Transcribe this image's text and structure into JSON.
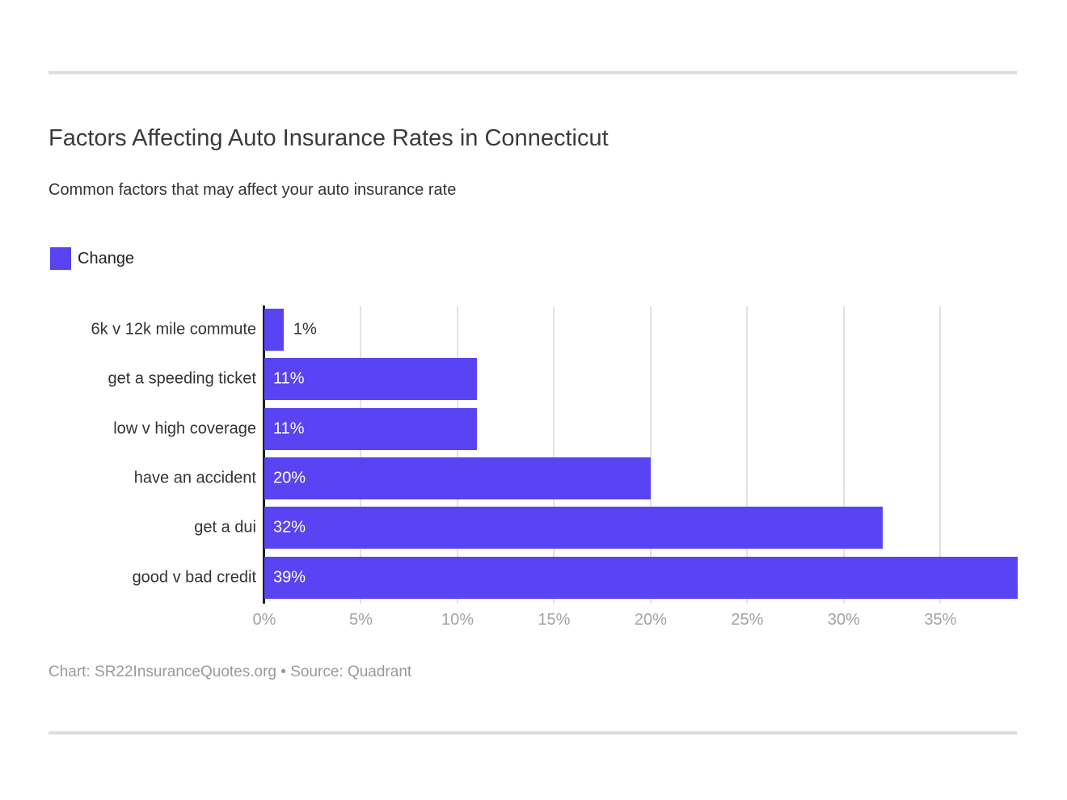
{
  "header": {
    "title": "Factors Affecting Auto Insurance Rates in Connecticut",
    "subtitle": "Common factors that may affect your auto insurance rate"
  },
  "legend": {
    "label": "Change",
    "color": "#5844f2"
  },
  "chart_data": {
    "type": "bar",
    "orientation": "horizontal",
    "title": "Factors Affecting Auto Insurance Rates in Connecticut",
    "subtitle": "Common factors that may affect your auto insurance rate",
    "series_name": "Change",
    "categories": [
      "6k v 12k mile commute",
      "get a speeding ticket",
      "low v high coverage",
      "have an accident",
      "get a dui",
      "good v bad credit"
    ],
    "values": [
      1,
      11,
      11,
      20,
      32,
      39
    ],
    "value_labels": [
      "1%",
      "11%",
      "11%",
      "20%",
      "32%",
      "39%"
    ],
    "xlabel": "",
    "ylabel": "",
    "xlim": [
      0,
      39
    ],
    "x_tick_values": [
      0,
      5,
      10,
      15,
      20,
      25,
      30,
      35
    ],
    "x_tick_labels": [
      "0%",
      "5%",
      "10%",
      "15%",
      "20%",
      "25%",
      "30%",
      "35%"
    ],
    "grid": true,
    "legend_position": "top-left",
    "bar_color": "#5844f2",
    "axis_line_color": "#1f1f1f",
    "gridline_color": "#e3e3e3"
  },
  "footer": {
    "text": "Chart: SR22InsuranceQuotes.org • Source: Quadrant"
  }
}
